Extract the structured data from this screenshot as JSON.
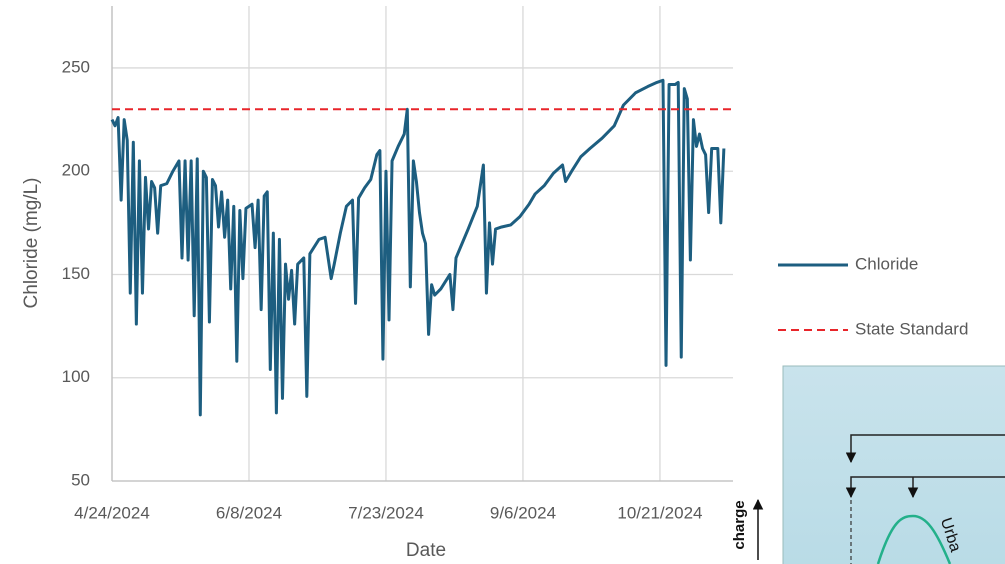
{
  "chart_data": {
    "type": "line",
    "x_label": "Date",
    "y_label": "Chloride (mg/L)",
    "x": [
      "2024-04-24",
      "2024-04-25",
      "2024-04-26",
      "2024-04-27",
      "2024-04-28",
      "2024-04-29",
      "2024-04-30",
      "2024-05-01",
      "2024-05-02",
      "2024-05-03",
      "2024-05-04",
      "2024-05-05",
      "2024-05-06",
      "2024-05-07",
      "2024-05-08",
      "2024-05-09",
      "2024-05-10",
      "2024-05-12",
      "2024-05-14",
      "2024-05-16",
      "2024-05-17",
      "2024-05-18",
      "2024-05-19",
      "2024-05-20",
      "2024-05-21",
      "2024-05-22",
      "2024-05-23",
      "2024-05-24",
      "2024-05-25",
      "2024-05-26",
      "2024-05-27",
      "2024-05-28",
      "2024-05-29",
      "2024-05-30",
      "2024-05-31",
      "2024-06-01",
      "2024-06-02",
      "2024-06-03",
      "2024-06-04",
      "2024-06-05",
      "2024-06-06",
      "2024-06-07",
      "2024-06-09",
      "2024-06-10",
      "2024-06-11",
      "2024-06-12",
      "2024-06-13",
      "2024-06-14",
      "2024-06-15",
      "2024-06-16",
      "2024-06-17",
      "2024-06-18",
      "2024-06-19",
      "2024-06-20",
      "2024-06-21",
      "2024-06-22",
      "2024-06-23",
      "2024-06-24",
      "2024-06-26",
      "2024-06-27",
      "2024-06-28",
      "2024-07-01",
      "2024-07-03",
      "2024-07-05",
      "2024-07-06",
      "2024-07-08",
      "2024-07-10",
      "2024-07-12",
      "2024-07-13",
      "2024-07-14",
      "2024-07-16",
      "2024-07-18",
      "2024-07-20",
      "2024-07-21",
      "2024-07-22",
      "2024-07-23",
      "2024-07-24",
      "2024-07-25",
      "2024-07-27",
      "2024-07-29",
      "2024-07-30",
      "2024-07-31",
      "2024-08-01",
      "2024-08-02",
      "2024-08-03",
      "2024-08-04",
      "2024-08-05",
      "2024-08-06",
      "2024-08-07",
      "2024-08-08",
      "2024-08-10",
      "2024-08-13",
      "2024-08-14",
      "2024-08-15",
      "2024-08-17",
      "2024-08-19",
      "2024-08-22",
      "2024-08-24",
      "2024-08-25",
      "2024-08-26",
      "2024-08-27",
      "2024-08-28",
      "2024-08-30",
      "2024-09-02",
      "2024-09-05",
      "2024-09-08",
      "2024-09-10",
      "2024-09-13",
      "2024-09-16",
      "2024-09-19",
      "2024-09-20",
      "2024-09-22",
      "2024-09-25",
      "2024-09-28",
      "2024-10-02",
      "2024-10-06",
      "2024-10-09",
      "2024-10-13",
      "2024-10-17",
      "2024-10-20",
      "2024-10-22",
      "2024-10-23",
      "2024-10-24",
      "2024-10-26",
      "2024-10-27",
      "2024-10-28",
      "2024-10-29",
      "2024-10-30",
      "2024-10-31",
      "2024-11-01",
      "2024-11-02",
      "2024-11-03",
      "2024-11-04",
      "2024-11-05",
      "2024-11-06",
      "2024-11-07",
      "2024-11-09",
      "2024-11-10",
      "2024-11-11"
    ],
    "series": [
      {
        "name": "Chloride",
        "color": "#1d5e80",
        "values": [
          225,
          222,
          226,
          186,
          225,
          215,
          141,
          214,
          126,
          205,
          141,
          197,
          172,
          195,
          192,
          170,
          193,
          194,
          200,
          205,
          158,
          205,
          157,
          205,
          130,
          206,
          82,
          200,
          197,
          127,
          196,
          193,
          173,
          190,
          168,
          186,
          143,
          183,
          108,
          181,
          148,
          182,
          184,
          163,
          186,
          133,
          188,
          190,
          104,
          170,
          83,
          167,
          90,
          155,
          138,
          152,
          126,
          155,
          158,
          91,
          160,
          167,
          168,
          148,
          155,
          170,
          183,
          186,
          136,
          187,
          192,
          196,
          208,
          210,
          109,
          200,
          128,
          205,
          212,
          218,
          230,
          144,
          205,
          195,
          180,
          170,
          165,
          121,
          145,
          140,
          143,
          150,
          133,
          158,
          165,
          172,
          183,
          203,
          141,
          175,
          155,
          172,
          173,
          174,
          178,
          184,
          189,
          193,
          199,
          203,
          195,
          200,
          207,
          211,
          216,
          222,
          232,
          238,
          241,
          243,
          244,
          106,
          242,
          242,
          243,
          110,
          240,
          235,
          157,
          225,
          212,
          218,
          211,
          208,
          180,
          211,
          211,
          175,
          211
        ]
      }
    ],
    "threshold": {
      "name": "State Standard",
      "value": 230,
      "color": "#e8252a"
    },
    "xlim": [
      "2024-04-24",
      "2024-11-14"
    ],
    "xticks": [
      {
        "value": "2024-04-24",
        "label": "4/24/2024"
      },
      {
        "value": "2024-06-08",
        "label": "6/8/2024"
      },
      {
        "value": "2024-07-23",
        "label": "7/23/2024"
      },
      {
        "value": "2024-09-06",
        "label": "9/6/2024"
      },
      {
        "value": "2024-10-21",
        "label": "10/21/2024"
      }
    ],
    "ylim": [
      50,
      280
    ],
    "yticks": [
      50,
      100,
      150,
      200,
      250
    ],
    "grid": true,
    "legend": "right"
  },
  "inset": {
    "y_label": "charge",
    "curve_label": "Urba"
  }
}
